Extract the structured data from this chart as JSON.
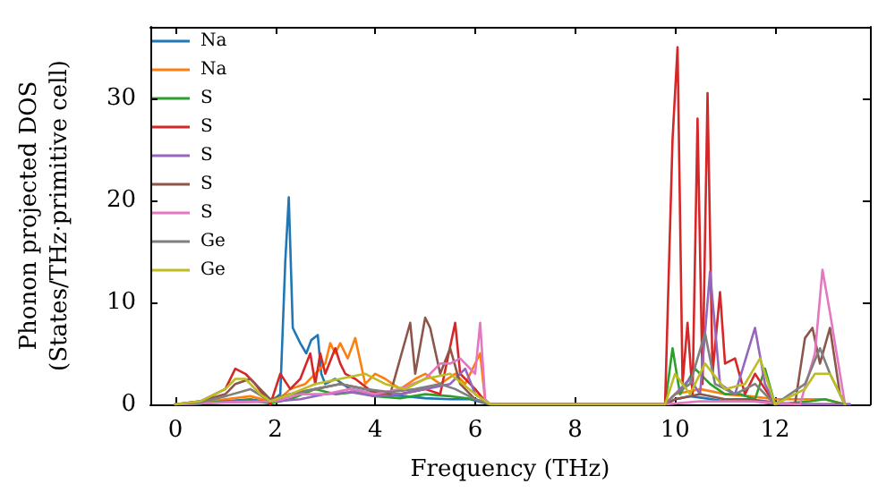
{
  "chart_data": {
    "type": "line",
    "xlabel": "Frequency (THz)",
    "ylabel": "Phonon projected DOS\n(States/THz·primitive cell)",
    "xlim": [
      -0.5,
      13.9
    ],
    "xticks": [
      0,
      2,
      4,
      6,
      8,
      10,
      12
    ],
    "ylim": [
      0,
      37
    ],
    "yticks": [
      0,
      10,
      20,
      30
    ],
    "grid": false,
    "legend": "top left",
    "marker": "none",
    "line_style": "solid",
    "series": [
      {
        "name": "Na",
        "color": "#1f77b4",
        "x": [
          0,
          0.5,
          1,
          1.5,
          1.9,
          2.1,
          2.2,
          2.27,
          2.35,
          2.5,
          2.62,
          2.72,
          2.85,
          2.92,
          3.0,
          3.2,
          3.5,
          3.8,
          4.2,
          4.6,
          5.0,
          5.5,
          5.9,
          6.2,
          6.3,
          9.8,
          10.0,
          10.3,
          10.6,
          11.0,
          11.5,
          11.9,
          12.2,
          13.5
        ],
        "values": [
          0,
          0.1,
          0.3,
          0.5,
          0.2,
          1,
          14,
          20.3,
          7.5,
          6,
          5,
          6.3,
          6.8,
          3,
          2,
          2.5,
          1.5,
          1.2,
          1,
          0.8,
          0.6,
          0.5,
          0.5,
          0.1,
          0,
          0,
          0.5,
          0.8,
          0.6,
          0.3,
          0.4,
          0.1,
          0,
          0
        ]
      },
      {
        "name": "Na",
        "color": "#ff7f0e",
        "x": [
          0,
          0.5,
          1,
          1.5,
          1.9,
          2.1,
          2.3,
          2.6,
          2.8,
          3.0,
          3.1,
          3.2,
          3.3,
          3.45,
          3.6,
          3.8,
          4.0,
          4.2,
          4.5,
          4.8,
          5.0,
          5.3,
          5.6,
          5.8,
          6.1,
          6.2,
          6.3,
          9.8,
          10.0,
          10.5,
          11.0,
          11.5,
          12.0,
          12.7,
          13.0,
          13.4
        ],
        "values": [
          0,
          0.2,
          0.5,
          0.8,
          0.3,
          0.6,
          1.5,
          2,
          3,
          4,
          6,
          5,
          6,
          4.5,
          6.5,
          2,
          3,
          2.5,
          1.5,
          2.5,
          3,
          2,
          3,
          2,
          5,
          0.3,
          0,
          0,
          1,
          1.5,
          1,
          0.8,
          0.5,
          0.5,
          0.5,
          0
        ]
      },
      {
        "name": "S",
        "color": "#2ca02c",
        "x": [
          0,
          0.5,
          1,
          1.5,
          1.9,
          2.3,
          2.8,
          3.2,
          3.6,
          4.0,
          4.5,
          5.0,
          5.5,
          6.0,
          6.3,
          9.8,
          9.95,
          10.1,
          10.4,
          10.7,
          11.0,
          11.3,
          11.6,
          11.8,
          12.0,
          12.7,
          13.0,
          13.4
        ],
        "values": [
          0,
          0.1,
          0.3,
          0.4,
          0.1,
          0.5,
          1.5,
          1,
          1.2,
          0.8,
          0.6,
          1,
          0.8,
          0.5,
          0,
          0,
          5.5,
          1,
          3.5,
          2,
          1,
          1,
          0.5,
          3.5,
          0,
          0.3,
          0.5,
          0
        ]
      },
      {
        "name": "S",
        "color": "#d62728",
        "x": [
          0,
          0.5,
          1.0,
          1.2,
          1.4,
          1.6,
          1.9,
          2.1,
          2.3,
          2.5,
          2.7,
          2.8,
          2.9,
          3.0,
          3.2,
          3.3,
          3.4,
          3.6,
          4.0,
          4.5,
          5.0,
          5.3,
          5.6,
          5.7,
          6.0,
          6.2,
          6.3,
          9.8,
          9.95,
          10.05,
          10.15,
          10.25,
          10.35,
          10.45,
          10.55,
          10.65,
          10.75,
          10.9,
          11.0,
          11.2,
          11.4,
          11.6,
          11.8,
          12.0,
          13.5
        ],
        "values": [
          0,
          0.3,
          1.5,
          3.5,
          3,
          2,
          0,
          3,
          1.5,
          2.5,
          5,
          2,
          5,
          3,
          5.5,
          4,
          3,
          2.5,
          1,
          1,
          1.5,
          1,
          8,
          3,
          1.5,
          0.3,
          0,
          0,
          26,
          35,
          2,
          8,
          1,
          28,
          2,
          30.5,
          3,
          11,
          4,
          4.5,
          1,
          3,
          1.5,
          0,
          0
        ]
      },
      {
        "name": "S",
        "color": "#9467bd",
        "x": [
          0,
          1,
          2,
          2.5,
          3,
          3.5,
          4,
          4.5,
          5,
          5.5,
          5.8,
          6.0,
          6.3,
          9.8,
          10.0,
          10.3,
          10.5,
          10.7,
          10.9,
          11.2,
          11.6,
          11.8,
          12.0,
          13.5
        ],
        "values": [
          0,
          0.2,
          0.3,
          0.5,
          1,
          1.2,
          0.8,
          1,
          1.5,
          2,
          3.5,
          1,
          0,
          0,
          1,
          2.5,
          1,
          13,
          2,
          1,
          7.5,
          2,
          0,
          0
        ]
      },
      {
        "name": "S",
        "color": "#8c564b",
        "x": [
          0,
          0.5,
          1.0,
          1.2,
          1.5,
          1.9,
          2.3,
          2.8,
          3.3,
          3.8,
          4.3,
          4.7,
          4.8,
          5.0,
          5.1,
          5.3,
          5.5,
          5.7,
          6.0,
          6.3,
          9.8,
          10.0,
          10.5,
          11.0,
          11.5,
          12.0,
          12.4,
          12.6,
          12.75,
          12.9,
          13.1,
          13.3,
          13.4
        ],
        "values": [
          0,
          0.3,
          1,
          2,
          2.5,
          0.5,
          1,
          1.5,
          2,
          1.5,
          1,
          8,
          3,
          8.5,
          7.5,
          3,
          5.5,
          2,
          0.5,
          0,
          0,
          0.5,
          1,
          0.5,
          0.5,
          0.2,
          0,
          6.5,
          7.5,
          4,
          7.5,
          1,
          0
        ]
      },
      {
        "name": "S",
        "color": "#e377c2",
        "x": [
          0,
          1,
          2,
          2.5,
          3,
          3.5,
          4,
          4.5,
          5.0,
          5.3,
          5.5,
          5.7,
          6.0,
          6.1,
          6.2,
          6.3,
          9.8,
          10.5,
          11.5,
          12.5,
          12.8,
          12.95,
          13.1,
          13.3,
          13.4
        ],
        "values": [
          0,
          0.2,
          0.3,
          1,
          1,
          1.5,
          1,
          1.5,
          2.5,
          4,
          4,
          4.5,
          3,
          8,
          0.5,
          0,
          0,
          0.3,
          0.3,
          0,
          5,
          13.2,
          9,
          3,
          0
        ]
      },
      {
        "name": "Ge",
        "color": "#7f7f7f",
        "x": [
          0,
          0.5,
          1,
          1.5,
          1.9,
          2.3,
          2.8,
          3.3,
          3.8,
          4.3,
          4.8,
          5.3,
          5.6,
          6.0,
          6.3,
          9.8,
          10.0,
          10.3,
          10.6,
          10.8,
          11.2,
          11.6,
          12.0,
          12.6,
          12.9,
          13.1,
          13.4
        ],
        "values": [
          0,
          0.2,
          0.8,
          1.5,
          0.3,
          1,
          1.5,
          2,
          1.5,
          1.2,
          1.5,
          2,
          1.5,
          0.5,
          0,
          0,
          1,
          2,
          7,
          2,
          1,
          2,
          0,
          2,
          5.5,
          3,
          0
        ]
      },
      {
        "name": "Ge",
        "color": "#bcbd22",
        "x": [
          0,
          0.5,
          1.0,
          1.2,
          1.4,
          1.7,
          1.9,
          2.3,
          2.8,
          3.3,
          3.8,
          4.2,
          4.6,
          5.0,
          5.5,
          6.0,
          6.3,
          9.8,
          10.0,
          10.3,
          10.6,
          11.0,
          11.4,
          11.7,
          12.0,
          12.6,
          12.8,
          13.1,
          13.4
        ],
        "values": [
          0,
          0.3,
          1.5,
          2.5,
          2.5,
          1,
          0.3,
          1,
          2,
          2.5,
          3,
          2,
          1.5,
          2.5,
          3,
          1,
          0,
          0,
          3,
          1,
          4,
          1.5,
          2,
          4.5,
          0,
          1.5,
          3,
          3,
          0
        ]
      }
    ]
  }
}
